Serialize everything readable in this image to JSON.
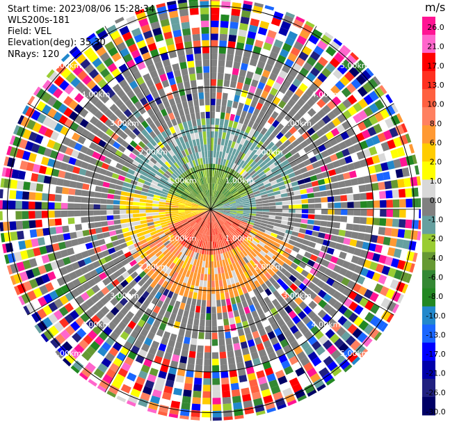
{
  "info": {
    "start_time": "Start time: 2023/08/06 15:28:34",
    "instrument": "WLS200s-181",
    "field": "Field: VEL",
    "elevation": "Elevation(deg): 35.30",
    "nrays": "NRays: 120"
  },
  "chart_data": {
    "type": "heatmap",
    "projection": "polar-ppi",
    "field": "VEL",
    "nrays": 120,
    "elevation_deg": 35.3,
    "range_rings_km": [
      1.0,
      2.0,
      3.0,
      4.0,
      5.0
    ],
    "ring_labels_km": [
      "1.00km",
      "2.00km",
      "3.00km",
      "4.00km",
      "5.00km"
    ],
    "max_range_km": 5.2,
    "colorbar": {
      "unit": "m/s",
      "tick_labels": [
        "26.0",
        "21.0",
        "17.0",
        "13.0",
        "10.0",
        "8.0",
        "6.0",
        "2.0",
        "1.0",
        "0.0",
        "-1.0",
        "-2.0",
        "-4.0",
        "-6.0",
        "-8.0",
        "-10.0",
        "-13.0",
        "-17.0",
        "-21.0",
        "-26.0",
        "-30.0"
      ],
      "colors": [
        "#ff1493",
        "#ff66cc",
        "#ff0000",
        "#ff3020",
        "#ff6040",
        "#ff8060",
        "#ff9933",
        "#ffcc00",
        "#ffff00",
        "#d8d8d8",
        "#808080",
        "#66a0a0",
        "#99cc33",
        "#669933",
        "#338833",
        "#228822",
        "#2288cc",
        "#1a66ff",
        "#0000ff",
        "#0000aa",
        "#202080",
        "#000066"
      ]
    },
    "velocity_pattern": {
      "zones": [
        {
          "range_km": [
            0.0,
            1.1
          ],
          "toward_north": "-6.0",
          "toward_south": "10.0",
          "toward_east": "-2.0",
          "toward_west": "2.0"
        },
        {
          "range_km": [
            1.1,
            2.2
          ],
          "toward_north": "-2.0",
          "toward_south": "6.0",
          "toward_east": "-1.0",
          "toward_west": "2.0"
        },
        {
          "range_km": [
            2.2,
            4.0
          ],
          "dominant": "0.0",
          "note": "noisy"
        },
        {
          "range_km": [
            4.0,
            5.2
          ],
          "dominant": "random",
          "note": "noise"
        }
      ]
    }
  }
}
